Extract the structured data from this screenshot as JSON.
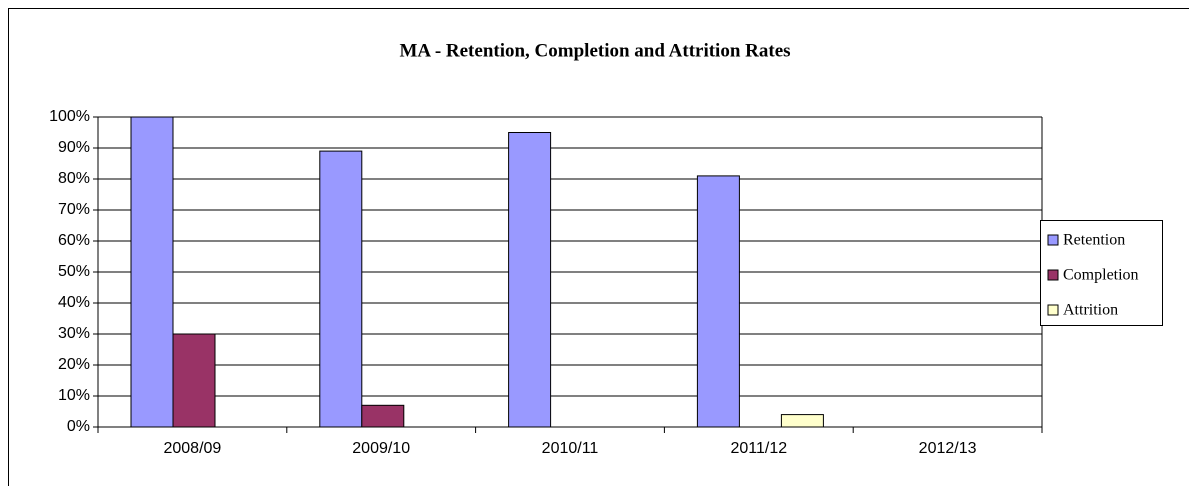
{
  "chart_data": {
    "type": "bar",
    "title": "MA - Retention, Completion and Attrition Rates",
    "categories": [
      "2008/09",
      "2009/10",
      "2010/11",
      "2011/12",
      "2012/13"
    ],
    "series": [
      {
        "name": "Retention",
        "color": "#9999ff",
        "values": [
          100,
          89,
          95,
          81,
          0
        ]
      },
      {
        "name": "Completion",
        "color": "#993366",
        "values": [
          30,
          7,
          0,
          0,
          0
        ]
      },
      {
        "name": "Attrition",
        "color": "#ffffcc",
        "values": [
          0,
          0,
          0,
          4,
          0
        ]
      }
    ],
    "ylim": [
      0,
      100
    ],
    "yticks": [
      {
        "value": 0,
        "label": "0%"
      },
      {
        "value": 10,
        "label": "10%"
      },
      {
        "value": 20,
        "label": "20%"
      },
      {
        "value": 30,
        "label": "30%"
      },
      {
        "value": 40,
        "label": "40%"
      },
      {
        "value": 50,
        "label": "50%"
      },
      {
        "value": 60,
        "label": "60%"
      },
      {
        "value": 70,
        "label": "70%"
      },
      {
        "value": 80,
        "label": "80%"
      },
      {
        "value": 90,
        "label": "90%"
      },
      {
        "value": 100,
        "label": "100%"
      }
    ],
    "grid": true,
    "legend": "right"
  }
}
